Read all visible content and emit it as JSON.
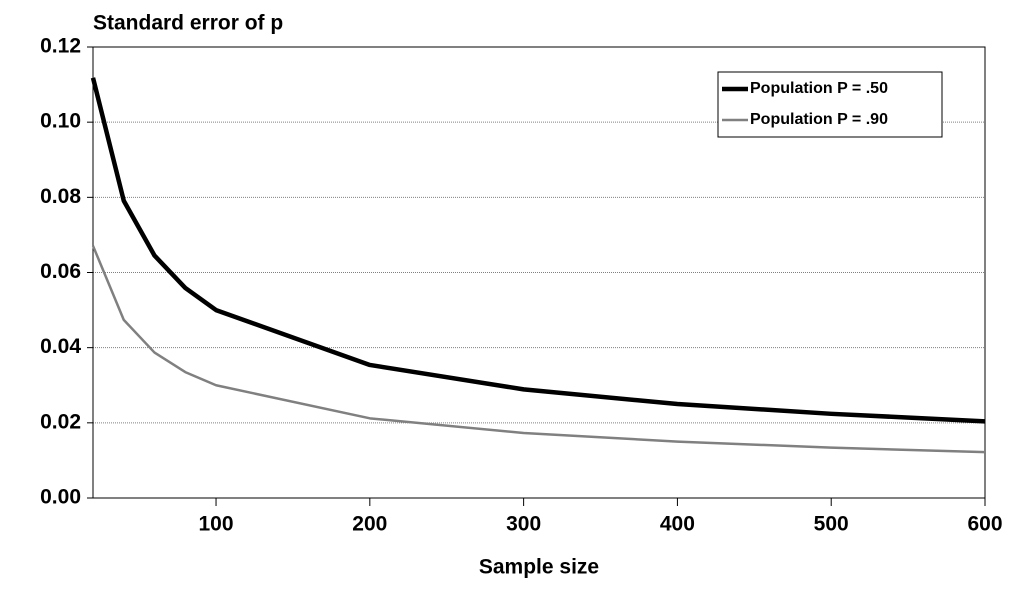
{
  "chart_data": {
    "type": "line",
    "title": "Standard error of p",
    "x_label": "Sample size",
    "x": [
      20,
      40,
      60,
      80,
      100,
      200,
      300,
      400,
      500,
      600
    ],
    "series": [
      {
        "name": "Population P = .50",
        "color": "#000000",
        "values": [
          0.1118,
          0.0791,
          0.0645,
          0.0559,
          0.05,
          0.0354,
          0.0289,
          0.025,
          0.0224,
          0.0204
        ]
      },
      {
        "name": "Population P = .90",
        "color": "#808080",
        "values": [
          0.0671,
          0.0474,
          0.0387,
          0.0335,
          0.03,
          0.0212,
          0.0173,
          0.015,
          0.0134,
          0.0122
        ]
      }
    ],
    "xlim": [
      20,
      600
    ],
    "xticks": [
      100,
      200,
      300,
      400,
      500,
      600
    ],
    "ylim": [
      0,
      0.12
    ],
    "yticks": [
      {
        "value": 0,
        "label": "0.00"
      },
      {
        "value": 0.02,
        "label": "0.02"
      },
      {
        "value": 0.04,
        "label": "0.04"
      },
      {
        "value": 0.06,
        "label": "0.06"
      },
      {
        "value": 0.08,
        "label": "0.08"
      },
      {
        "value": 0.1,
        "label": "0.10"
      },
      {
        "value": 0.12,
        "label": "0.12"
      }
    ],
    "grid": true,
    "legend": "upper right"
  }
}
